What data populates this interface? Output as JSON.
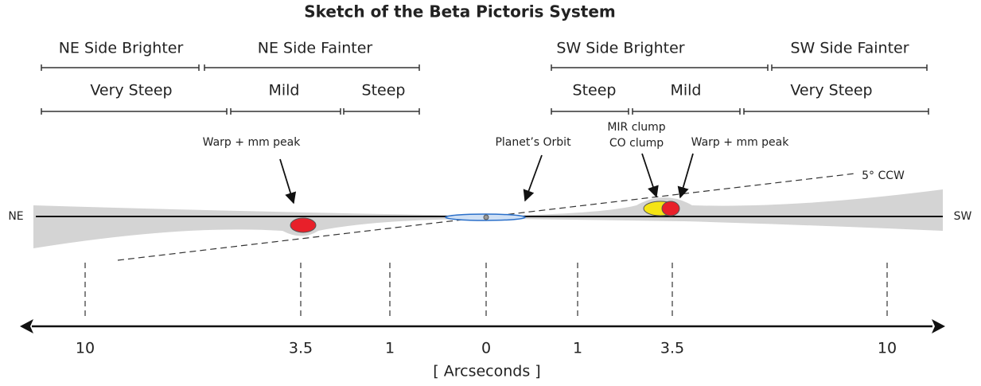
{
  "title": "Sketch of the Beta Pictoris System",
  "brightness_regions": [
    "NE Side Brighter",
    "NE Side Fainter",
    "SW Side Brighter",
    "SW Side Fainter"
  ],
  "slope_regions": [
    "Very Steep",
    "Mild",
    "Steep",
    "Steep",
    "Mild",
    "Very Steep"
  ],
  "annotations": {
    "left_warp": "Warp + mm peak",
    "planet_orbit": "Planet’s Orbit",
    "mir_clump": "MIR clump",
    "co_clump": "CO clump",
    "right_warp": "Warp + mm peak",
    "tilt": "5° CCW"
  },
  "sides": [
    "NE",
    "SW"
  ],
  "axis": {
    "ticks": [
      "10",
      "3.5",
      "1",
      "0",
      "1",
      "3.5",
      "10"
    ],
    "label": "[ Arcseconds ]"
  }
}
